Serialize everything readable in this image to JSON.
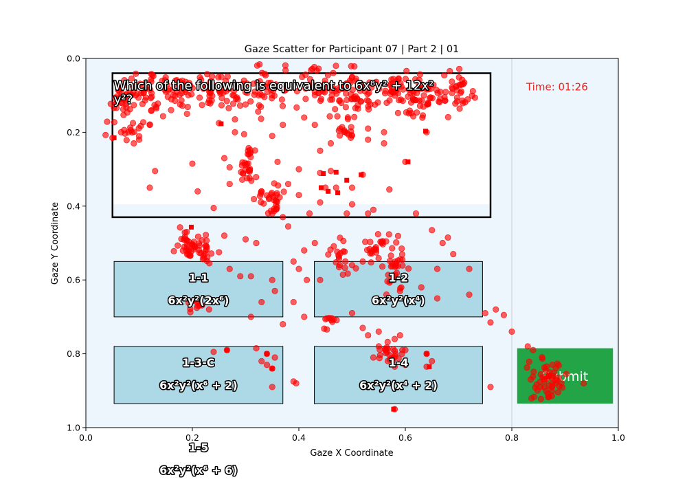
{
  "chart_data": {
    "type": "scatter",
    "title": "Gaze Scatter for Participant 07 | Part 2 | 01",
    "xlabel": "Gaze X Coordinate",
    "ylabel": "Gaze Y Coordinate",
    "xlim": [
      0.0,
      1.0
    ],
    "ylim": [
      1.0,
      0.0
    ],
    "y_inverted": true,
    "x_ticks": [
      "0.0",
      "0.2",
      "0.4",
      "0.6",
      "0.8",
      "1.0"
    ],
    "y_ticks": [
      "0.0",
      "0.2",
      "0.4",
      "0.6",
      "0.8",
      "1.0"
    ],
    "background_color": "#eef6fd",
    "point_color": "#ff0000",
    "screen": {
      "question": {
        "text_line1": "Which of the following is equivalent to 6x⁸y² + 12x²",
        "text_line2": "y²?",
        "x0": 0.05,
        "x1": 0.76,
        "y0": 0.04,
        "y1": 0.43
      },
      "timer": {
        "text": "Time: 01:26",
        "x": 0.885,
        "y": 0.075,
        "color": "#e8261e"
      },
      "answers": [
        {
          "id": "1-1",
          "formula": "6x²y²(2x⁶)",
          "x0": 0.053,
          "x1": 0.37,
          "y0": 0.55,
          "y1": 0.7
        },
        {
          "id": "1-2",
          "formula": "6x²y²(x⁴)",
          "x0": 0.429,
          "x1": 0.745,
          "y0": 0.55,
          "y1": 0.7
        },
        {
          "id": "1-3-C",
          "formula": "6x²y²(x⁶ + 2)",
          "x0": 0.053,
          "x1": 0.37,
          "y0": 0.78,
          "y1": 0.935
        },
        {
          "id": "1-4",
          "formula": "6x²y²(x⁴ + 2)",
          "x0": 0.429,
          "x1": 0.745,
          "y0": 0.78,
          "y1": 0.935
        },
        {
          "id": "1-5",
          "formula": "6x²y²(x⁶ + 6)",
          "x0": 0.053,
          "x1": 0.37,
          "y0": 1.01,
          "y1": 1.15
        }
      ],
      "submit": {
        "label": "Submit",
        "x0": 0.81,
        "x1": 0.99,
        "y0": 0.785,
        "y1": 0.935,
        "color": "#22a447"
      },
      "divider_x": 0.8
    },
    "gaze_clusters": [
      {
        "cx": 0.07,
        "cy": 0.12,
        "sx": 0.016,
        "sy": 0.03,
        "n": 40
      },
      {
        "cx": 0.11,
        "cy": 0.09,
        "sx": 0.02,
        "sy": 0.03,
        "n": 35
      },
      {
        "cx": 0.17,
        "cy": 0.08,
        "sx": 0.025,
        "sy": 0.025,
        "n": 45
      },
      {
        "cx": 0.26,
        "cy": 0.09,
        "sx": 0.03,
        "sy": 0.025,
        "n": 50
      },
      {
        "cx": 0.34,
        "cy": 0.09,
        "sx": 0.02,
        "sy": 0.03,
        "n": 40
      },
      {
        "cx": 0.45,
        "cy": 0.08,
        "sx": 0.03,
        "sy": 0.025,
        "n": 55
      },
      {
        "cx": 0.51,
        "cy": 0.1,
        "sx": 0.02,
        "sy": 0.03,
        "n": 50
      },
      {
        "cx": 0.58,
        "cy": 0.08,
        "sx": 0.02,
        "sy": 0.02,
        "n": 35
      },
      {
        "cx": 0.63,
        "cy": 0.1,
        "sx": 0.025,
        "sy": 0.03,
        "n": 55
      },
      {
        "cx": 0.7,
        "cy": 0.09,
        "sx": 0.015,
        "sy": 0.03,
        "n": 35
      },
      {
        "cx": 0.09,
        "cy": 0.19,
        "sx": 0.015,
        "sy": 0.02,
        "n": 12
      },
      {
        "cx": 0.305,
        "cy": 0.28,
        "sx": 0.008,
        "sy": 0.035,
        "n": 30
      },
      {
        "cx": 0.345,
        "cy": 0.38,
        "sx": 0.012,
        "sy": 0.025,
        "n": 30
      },
      {
        "cx": 0.49,
        "cy": 0.2,
        "sx": 0.01,
        "sy": 0.015,
        "n": 15
      },
      {
        "cx": 0.195,
        "cy": 0.51,
        "sx": 0.014,
        "sy": 0.02,
        "n": 40
      },
      {
        "cx": 0.225,
        "cy": 0.525,
        "sx": 0.008,
        "sy": 0.015,
        "n": 15
      },
      {
        "cx": 0.48,
        "cy": 0.54,
        "sx": 0.01,
        "sy": 0.03,
        "n": 20
      },
      {
        "cx": 0.545,
        "cy": 0.51,
        "sx": 0.01,
        "sy": 0.015,
        "n": 20
      },
      {
        "cx": 0.58,
        "cy": 0.57,
        "sx": 0.01,
        "sy": 0.04,
        "n": 35
      },
      {
        "cx": 0.205,
        "cy": 0.675,
        "sx": 0.01,
        "sy": 0.01,
        "n": 12
      },
      {
        "cx": 0.455,
        "cy": 0.71,
        "sx": 0.008,
        "sy": 0.01,
        "n": 10
      },
      {
        "cx": 0.57,
        "cy": 0.8,
        "sx": 0.012,
        "sy": 0.015,
        "n": 25
      },
      {
        "cx": 0.865,
        "cy": 0.87,
        "sx": 0.015,
        "sy": 0.03,
        "n": 55
      }
    ],
    "gaze_scatter": [
      [
        0.05,
        0.215
      ],
      [
        0.25,
        0.175
      ],
      [
        0.12,
        0.35
      ],
      [
        0.2,
        0.285
      ],
      [
        0.21,
        0.36
      ],
      [
        0.13,
        0.305
      ],
      [
        0.27,
        0.295
      ],
      [
        0.27,
        0.34
      ],
      [
        0.24,
        0.405
      ],
      [
        0.4,
        0.3
      ],
      [
        0.38,
        0.34
      ],
      [
        0.4,
        0.37
      ],
      [
        0.42,
        0.42
      ],
      [
        0.44,
        0.39
      ],
      [
        0.44,
        0.31
      ],
      [
        0.45,
        0.35
      ],
      [
        0.46,
        0.305
      ],
      [
        0.47,
        0.35
      ],
      [
        0.5,
        0.35
      ],
      [
        0.52,
        0.315
      ],
      [
        0.5,
        0.395
      ],
      [
        0.49,
        0.42
      ],
      [
        0.53,
        0.42
      ],
      [
        0.54,
        0.41
      ],
      [
        0.57,
        0.355
      ],
      [
        0.6,
        0.28
      ],
      [
        0.62,
        0.42
      ],
      [
        0.38,
        0.455
      ],
      [
        0.37,
        0.43
      ],
      [
        0.35,
        0.42
      ],
      [
        0.33,
        0.36
      ],
      [
        0.36,
        0.28
      ],
      [
        0.35,
        0.21
      ],
      [
        0.37,
        0.18
      ],
      [
        0.28,
        0.165
      ],
      [
        0.23,
        0.12
      ],
      [
        0.44,
        0.25
      ],
      [
        0.46,
        0.23
      ],
      [
        0.41,
        0.52
      ],
      [
        0.43,
        0.5
      ],
      [
        0.39,
        0.55
      ],
      [
        0.4,
        0.57
      ],
      [
        0.3,
        0.49
      ],
      [
        0.32,
        0.5
      ],
      [
        0.26,
        0.48
      ],
      [
        0.25,
        0.525
      ],
      [
        0.29,
        0.59
      ],
      [
        0.27,
        0.57
      ],
      [
        0.31,
        0.59
      ],
      [
        0.35,
        0.6
      ],
      [
        0.355,
        0.63
      ],
      [
        0.33,
        0.66
      ],
      [
        0.31,
        0.7
      ],
      [
        0.37,
        0.72
      ],
      [
        0.39,
        0.66
      ],
      [
        0.415,
        0.6
      ],
      [
        0.41,
        0.7
      ],
      [
        0.44,
        0.6
      ],
      [
        0.5,
        0.56
      ],
      [
        0.52,
        0.55
      ],
      [
        0.5,
        0.69
      ],
      [
        0.53,
        0.75
      ],
      [
        0.52,
        0.73
      ],
      [
        0.55,
        0.74
      ],
      [
        0.59,
        0.63
      ],
      [
        0.63,
        0.62
      ],
      [
        0.66,
        0.65
      ],
      [
        0.67,
        0.5
      ],
      [
        0.68,
        0.485
      ],
      [
        0.65,
        0.465
      ],
      [
        0.69,
        0.53
      ],
      [
        0.66,
        0.57
      ],
      [
        0.72,
        0.57
      ],
      [
        0.72,
        0.64
      ],
      [
        0.75,
        0.69
      ],
      [
        0.77,
        0.68
      ],
      [
        0.76,
        0.715
      ],
      [
        0.785,
        0.695
      ],
      [
        0.8,
        0.74
      ],
      [
        0.83,
        0.78
      ],
      [
        0.84,
        0.79
      ],
      [
        0.24,
        0.795
      ],
      [
        0.265,
        0.79
      ],
      [
        0.32,
        0.785
      ],
      [
        0.34,
        0.8
      ],
      [
        0.355,
        0.81
      ],
      [
        0.35,
        0.84
      ],
      [
        0.34,
        0.83
      ],
      [
        0.33,
        0.82
      ],
      [
        0.35,
        0.89
      ],
      [
        0.39,
        0.875
      ],
      [
        0.395,
        0.88
      ],
      [
        0.58,
        0.95
      ],
      [
        0.58,
        0.76
      ],
      [
        0.59,
        0.75
      ],
      [
        0.6,
        0.79
      ],
      [
        0.64,
        0.8
      ],
      [
        0.65,
        0.82
      ],
      [
        0.64,
        0.835
      ],
      [
        0.6,
        0.83
      ],
      [
        0.58,
        0.835
      ],
      [
        0.54,
        0.81
      ],
      [
        0.55,
        0.78
      ],
      [
        0.76,
        0.89
      ],
      [
        0.935,
        0.88
      ],
      [
        0.64,
        0.2
      ],
      [
        0.53,
        0.19
      ],
      [
        0.56,
        0.2
      ],
      [
        0.56,
        0.23
      ],
      [
        0.53,
        0.22
      ],
      [
        0.43,
        0.18
      ],
      [
        0.41,
        0.16
      ],
      [
        0.28,
        0.2
      ],
      [
        0.26,
        0.27
      ],
      [
        0.09,
        0.23
      ],
      [
        0.1,
        0.22
      ],
      [
        0.08,
        0.2
      ],
      [
        0.12,
        0.18
      ],
      [
        0.19,
        0.15
      ],
      [
        0.16,
        0.14
      ],
      [
        0.15,
        0.09
      ]
    ],
    "marker_squares": [
      [
        0.053,
        0.215
      ],
      [
        0.254,
        0.177
      ],
      [
        0.638,
        0.197
      ],
      [
        0.605,
        0.28
      ],
      [
        0.517,
        0.315
      ],
      [
        0.446,
        0.312
      ],
      [
        0.47,
        0.308
      ],
      [
        0.442,
        0.35
      ],
      [
        0.455,
        0.36
      ],
      [
        0.473,
        0.364
      ],
      [
        0.49,
        0.33
      ],
      [
        0.198,
        0.457
      ],
      [
        0.265,
        0.79
      ],
      [
        0.34,
        0.8
      ],
      [
        0.35,
        0.84
      ],
      [
        0.64,
        0.8
      ],
      [
        0.645,
        0.835
      ],
      [
        0.578,
        0.95
      ]
    ]
  }
}
